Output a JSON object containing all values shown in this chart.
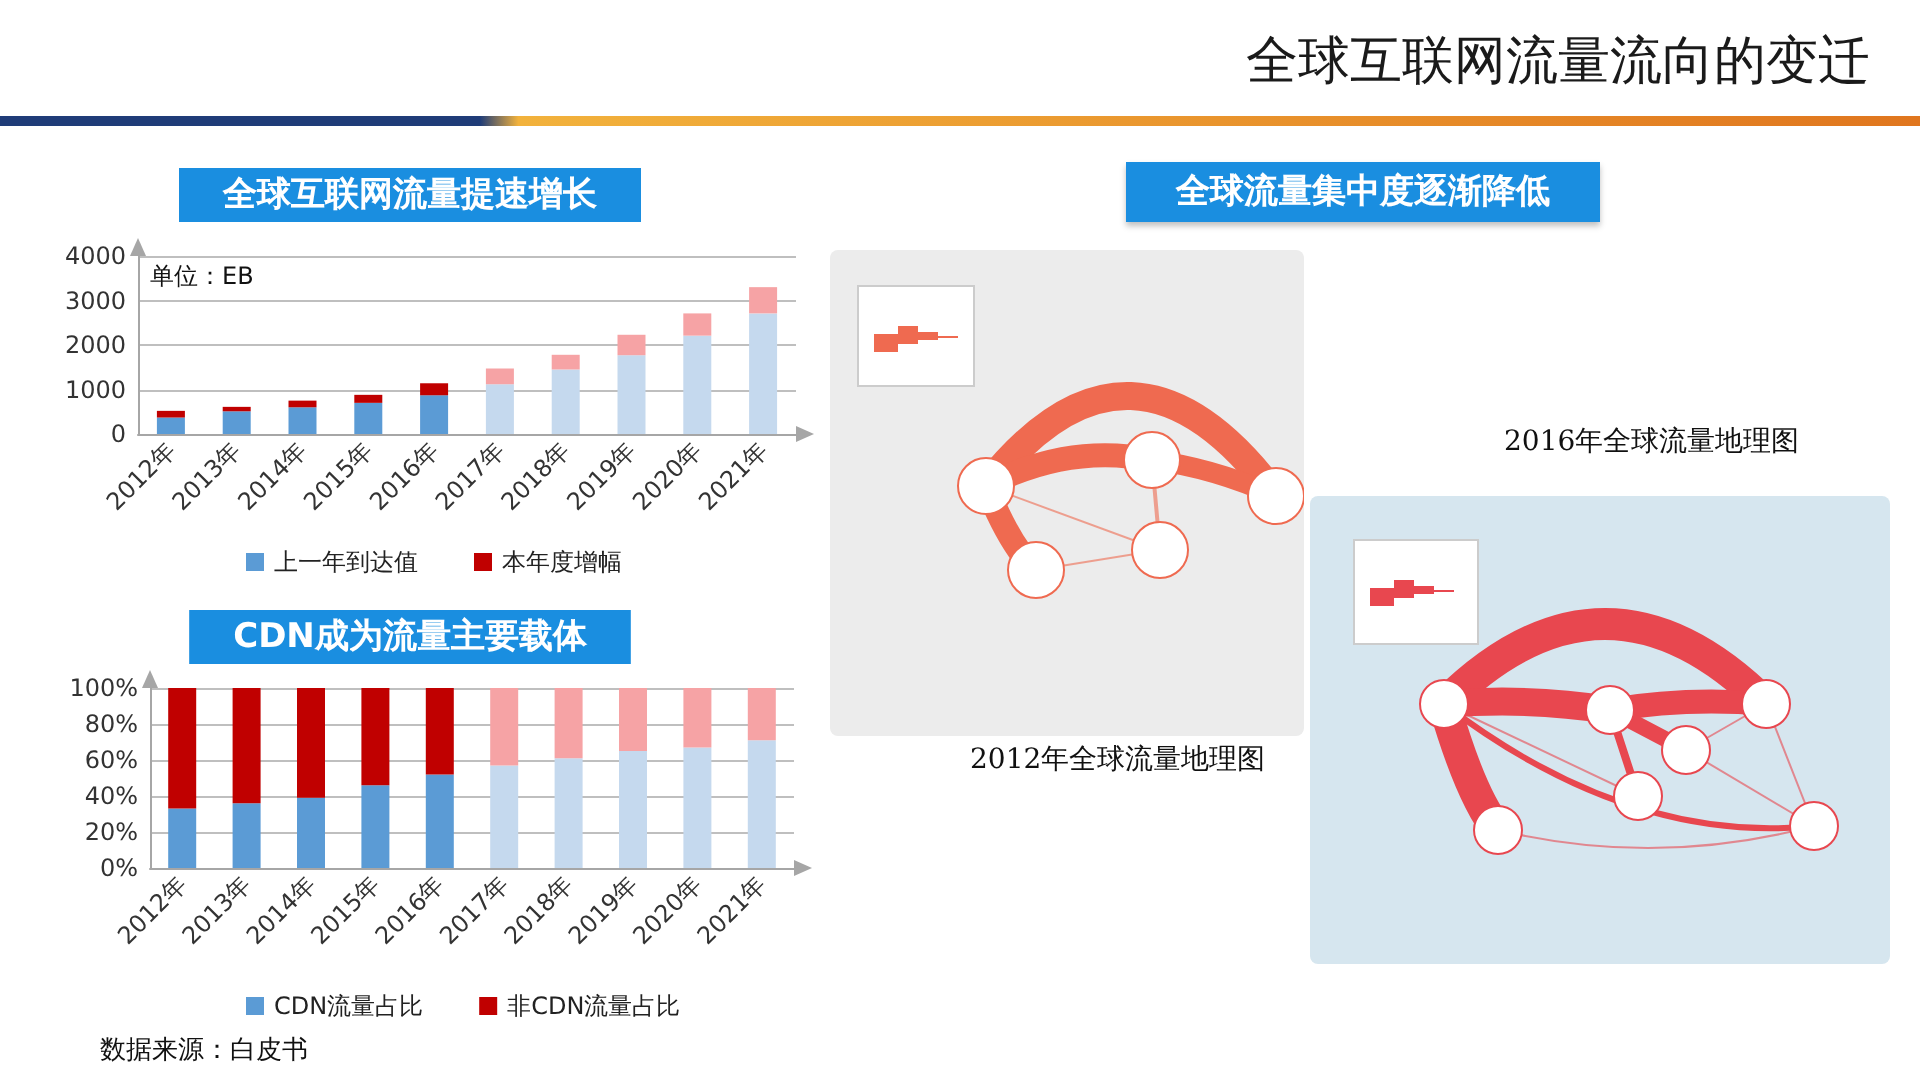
{
  "chart_data": [
    {
      "type": "other",
      "title": "全球互联网流量流向的变迁"
    },
    {
      "type": "bar",
      "title": "全球互联网流量提速增长",
      "ylabel": "单位：EB",
      "categories": [
        "2012年",
        "2013年",
        "2014年",
        "2015年",
        "2016年",
        "2017年",
        "2018年",
        "2019年",
        "2020年",
        "2021年"
      ],
      "stacked": true,
      "series": [
        {
          "name": "上一年到达值",
          "color": "#5b9bd5",
          "colors": [
            "#5b9bd5",
            "#5b9bd5",
            "#5b9bd5",
            "#5b9bd5",
            "#5b9bd5",
            "#c5d9ee",
            "#c5d9ee",
            "#c5d9ee",
            "#c5d9ee",
            "#c5d9ee"
          ],
          "values": [
            370,
            510,
            600,
            700,
            870,
            1120,
            1450,
            1770,
            2210,
            2710
          ]
        },
        {
          "name": "本年度增幅",
          "color": "#c00000",
          "colors": [
            "#c00000",
            "#c00000",
            "#c00000",
            "#c00000",
            "#c00000",
            "#f6a3a5",
            "#f6a3a5",
            "#f6a3a5",
            "#f6a3a5",
            "#f6a3a5"
          ],
          "values": [
            150,
            100,
            150,
            180,
            270,
            350,
            330,
            460,
            500,
            590
          ]
        }
      ],
      "ylim": [
        0,
        4000
      ],
      "yticks": [
        0,
        1000,
        2000,
        3000,
        4000
      ],
      "grid": "y",
      "legend": "bottom"
    },
    {
      "type": "bar",
      "title": "CDN成为流量主要载体",
      "categories": [
        "2012年",
        "2013年",
        "2014年",
        "2015年",
        "2016年",
        "2017年",
        "2018年",
        "2019年",
        "2020年",
        "2021年"
      ],
      "stacked": true,
      "series": [
        {
          "name": "CDN流量占比",
          "color": "#5b9bd5",
          "colors": [
            "#5b9bd5",
            "#5b9bd5",
            "#5b9bd5",
            "#5b9bd5",
            "#5b9bd5",
            "#c5d9ee",
            "#c5d9ee",
            "#c5d9ee",
            "#c5d9ee",
            "#c5d9ee"
          ],
          "values": [
            33,
            36,
            39,
            46,
            52,
            57,
            61,
            65,
            67,
            71
          ]
        },
        {
          "name": "非CDN流量占比",
          "color": "#c00000",
          "colors": [
            "#c00000",
            "#c00000",
            "#c00000",
            "#c00000",
            "#c00000",
            "#f6a3a5",
            "#f6a3a5",
            "#f6a3a5",
            "#f6a3a5",
            "#f6a3a5"
          ],
          "values": [
            67,
            64,
            61,
            54,
            48,
            43,
            39,
            35,
            33,
            29
          ]
        }
      ],
      "ylim": [
        0,
        100
      ],
      "yticks": [
        {
          "value": 0,
          "label": "0%"
        },
        {
          "value": 20,
          "label": "20%"
        },
        {
          "value": 40,
          "label": "40%"
        },
        {
          "value": 60,
          "label": "60%"
        },
        {
          "value": 80,
          "label": "80%"
        },
        {
          "value": 100,
          "label": "100%"
        }
      ],
      "grid": "y",
      "legend": "bottom",
      "annotations": [
        "数据来源：白皮书"
      ]
    },
    {
      "type": "other",
      "title": "全球流量集中度逐渐降低",
      "annotations": [
        "2016年全球流量地理图",
        "2012年全球流量地理图"
      ]
    }
  ]
}
